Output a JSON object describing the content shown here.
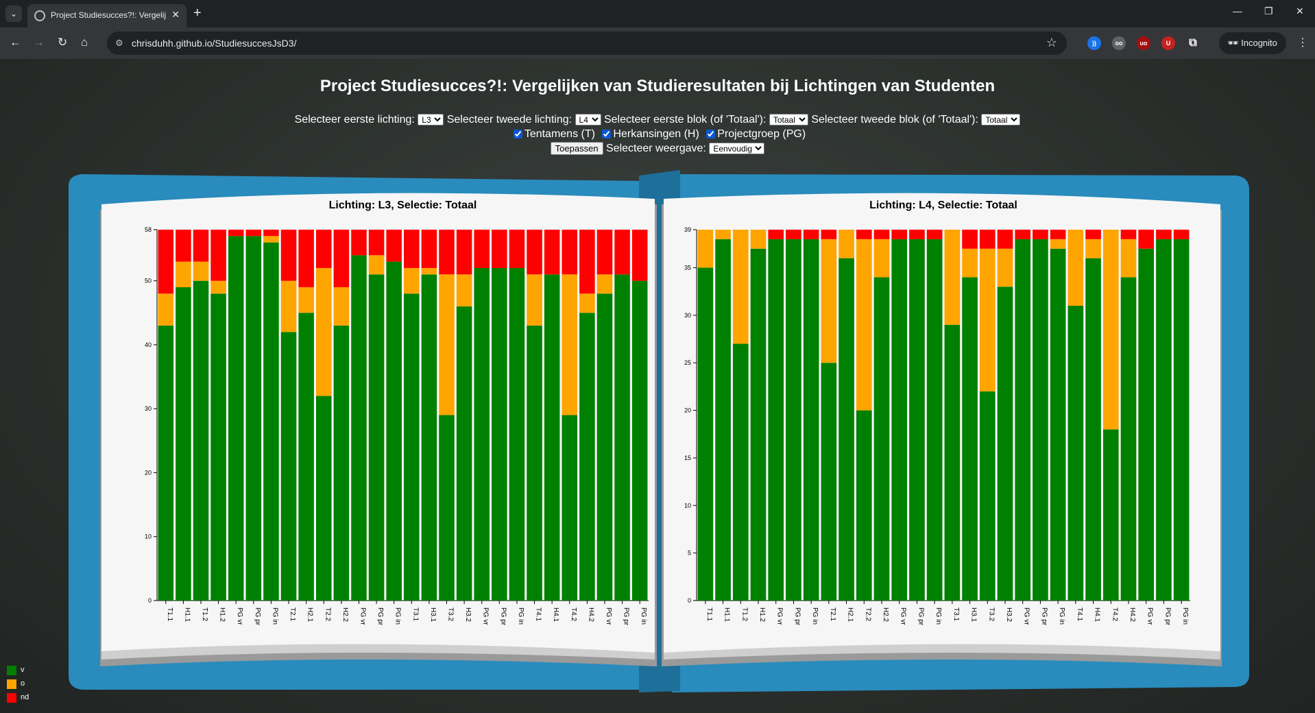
{
  "browser": {
    "tab_title": "Project Studiesucces?!: Vergelijken van Studieresultaten bij Lichtingen van Studenten",
    "url": "chrisduhh.github.io/StudiesuccesJsD3/",
    "incognito_label": "Incognito"
  },
  "page": {
    "title": "Project Studiesucces?!: Vergelijken van Studieresultaten bij Lichtingen van Studenten",
    "controls": {
      "first_lichting_label": "Selecteer eerste lichting:",
      "first_lichting_value": "L3",
      "second_lichting_label": "Selecteer tweede lichting:",
      "second_lichting_value": "L4",
      "first_blok_label": "Selecteer eerste blok (of 'Totaal'):",
      "first_blok_value": "Totaal",
      "second_blok_label": "Selecteer tweede blok (of 'Totaal'):",
      "second_blok_value": "Totaal",
      "checkbox_t_label": "Tentamens (T)",
      "checkbox_h_label": "Herkansingen (H)",
      "checkbox_pg_label": "Projectgroep (PG)",
      "apply_label": "Toepassen",
      "weergave_label": "Selecteer weergave:",
      "weergave_value": "Eenvoudig"
    }
  },
  "legend": [
    {
      "label": "v",
      "color": "#008000"
    },
    {
      "label": "o",
      "color": "#FFA500"
    },
    {
      "label": "nd",
      "color": "#FF0000"
    }
  ],
  "chart_data": [
    {
      "type": "bar",
      "stacked": true,
      "title": "Lichting: L3, Selectie: Totaal",
      "categories": [
        "T1.1",
        "H1.1",
        "T1.2",
        "H1.2",
        "PG vr",
        "PG pr",
        "PG in",
        "T2.1",
        "H2.1",
        "T2.2",
        "H2.2",
        "PG vr",
        "PG pr",
        "PG in",
        "T3.1",
        "H3.1",
        "T3.2",
        "H3.2",
        "PG vr",
        "PG pr",
        "PG in",
        "T4.1",
        "H4.1",
        "T4.2",
        "H4.2",
        "PG vr",
        "PG pr",
        "PG in"
      ],
      "ylim": [
        0,
        58
      ],
      "yticks": [
        0,
        10,
        20,
        30,
        40,
        50,
        58
      ],
      "series": [
        {
          "name": "v",
          "color": "#008000",
          "values": [
            43,
            49,
            50,
            48,
            57,
            57,
            56,
            42,
            45,
            32,
            43,
            54,
            51,
            53,
            48,
            51,
            29,
            46,
            52,
            52,
            52,
            43,
            51,
            29,
            45,
            48,
            51,
            50
          ]
        },
        {
          "name": "o",
          "color": "#FFA500",
          "values": [
            5,
            4,
            3,
            2,
            0,
            0,
            1,
            8,
            4,
            20,
            6,
            0,
            3,
            0,
            4,
            1,
            22,
            5,
            0,
            0,
            0,
            8,
            0,
            22,
            3,
            3,
            0,
            0
          ]
        },
        {
          "name": "nd",
          "color": "#FF0000",
          "values": [
            10,
            5,
            5,
            8,
            1,
            1,
            1,
            8,
            9,
            6,
            9,
            4,
            4,
            5,
            6,
            6,
            7,
            7,
            6,
            6,
            6,
            7,
            7,
            7,
            10,
            7,
            7,
            8
          ]
        }
      ]
    },
    {
      "type": "bar",
      "stacked": true,
      "title": "Lichting: L4, Selectie: Totaal",
      "categories": [
        "T1.1",
        "H1.1",
        "T1.2",
        "H1.2",
        "PG vr",
        "PG pr",
        "PG in",
        "T2.1",
        "H2.1",
        "T2.2",
        "H2.2",
        "PG vr",
        "PG pr",
        "PG in",
        "T3.1",
        "H3.1",
        "T3.2",
        "H3.2",
        "PG vr",
        "PG pr",
        "PG in",
        "T4.1",
        "H4.1",
        "T4.2",
        "H4.2",
        "PG vr",
        "PG pr",
        "PG in"
      ],
      "ylim": [
        0,
        39
      ],
      "yticks": [
        0,
        5,
        10,
        15,
        20,
        25,
        30,
        35,
        39
      ],
      "series": [
        {
          "name": "v",
          "color": "#008000",
          "values": [
            35,
            38,
            27,
            37,
            38,
            38,
            38,
            25,
            36,
            20,
            34,
            38,
            38,
            38,
            29,
            34,
            22,
            33,
            38,
            38,
            37,
            31,
            36,
            18,
            34,
            37,
            38,
            38
          ]
        },
        {
          "name": "o",
          "color": "#FFA500",
          "values": [
            4,
            1,
            12,
            2,
            0,
            0,
            0,
            13,
            3,
            18,
            4,
            0,
            0,
            0,
            10,
            3,
            15,
            4,
            0,
            0,
            1,
            8,
            2,
            21,
            4,
            0,
            0,
            0
          ]
        },
        {
          "name": "nd",
          "color": "#FF0000",
          "values": [
            0,
            0,
            0,
            0,
            1,
            1,
            1,
            1,
            0,
            1,
            1,
            1,
            1,
            1,
            0,
            2,
            2,
            2,
            1,
            1,
            1,
            0,
            1,
            0,
            1,
            2,
            1,
            1
          ]
        }
      ]
    }
  ]
}
